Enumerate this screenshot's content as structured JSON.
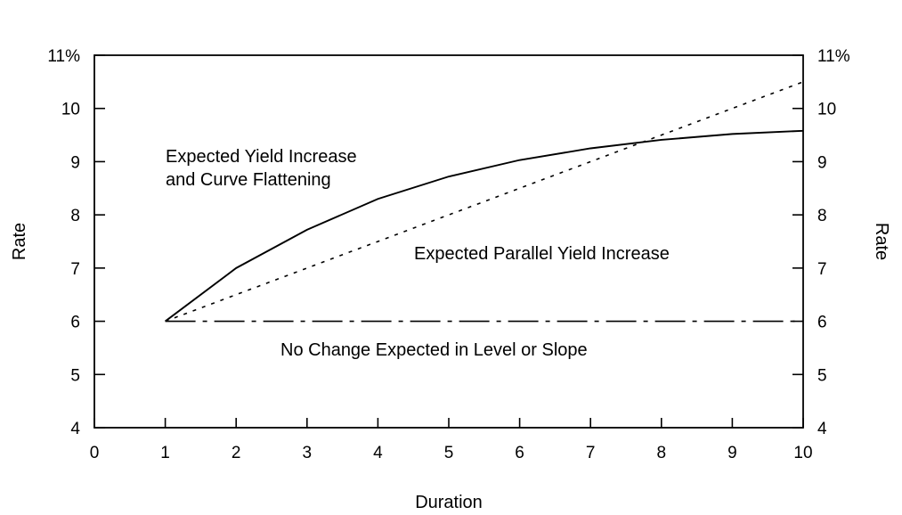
{
  "chart_data": {
    "type": "line",
    "xlabel": "Duration",
    "ylabel": "Rate",
    "y2label": "Rate",
    "xlim": [
      0,
      10
    ],
    "ylim": [
      4,
      11
    ],
    "x_ticks": [
      "0",
      "1",
      "2",
      "3",
      "4",
      "5",
      "6",
      "7",
      "8",
      "9",
      "10"
    ],
    "y_ticks": [
      "4",
      "5",
      "6",
      "7",
      "8",
      "9",
      "10",
      "11%"
    ],
    "grid": false,
    "series": [
      {
        "label": "Expected Yield Increase and Curve Flattening",
        "label_lines": [
          "Expected Yield Increase",
          "and Curve Flattening"
        ],
        "style": "solid",
        "x": [
          1,
          2,
          3,
          4,
          5,
          6,
          7,
          8,
          9,
          10
        ],
        "y": [
          6.0,
          7.0,
          7.72,
          8.3,
          8.72,
          9.03,
          9.25,
          9.41,
          9.52,
          9.58
        ]
      },
      {
        "label": "Expected Parallel Yield Increase",
        "style": "dotted",
        "x": [
          1,
          10
        ],
        "y": [
          6.0,
          10.5
        ]
      },
      {
        "label": "No Change Expected in Level or Slope",
        "style": "dashdot",
        "x": [
          1,
          10
        ],
        "y": [
          6.0,
          6.0
        ]
      }
    ]
  }
}
